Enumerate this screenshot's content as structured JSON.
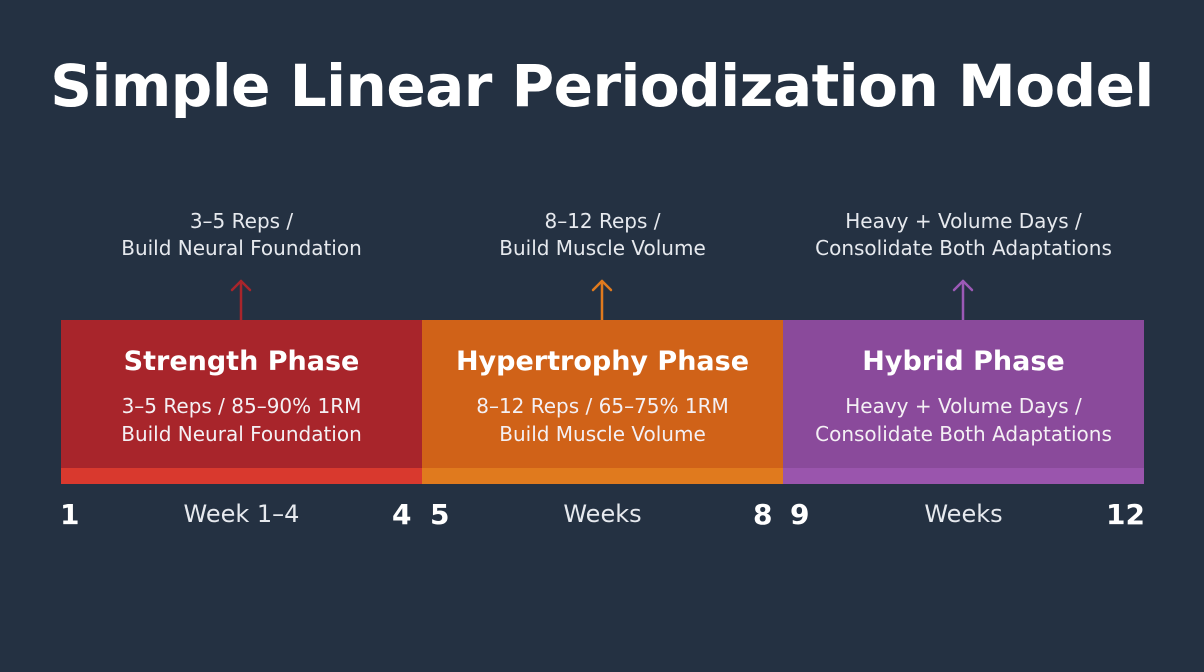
{
  "title": "Simple Linear Periodization Model",
  "colors": {
    "background": "#243142",
    "strength": "#a8252b",
    "strength_strip": "#d9392e",
    "strength_arrow": "#a8252b",
    "hypertrophy": "#d06218",
    "hypertrophy_strip": "#e07a1e",
    "hypertrophy_arrow": "#e07a1e",
    "hybrid": "#8a4a9b",
    "hybrid_strip": "#9a55ad",
    "hybrid_arrow": "#9b59b6"
  },
  "phases": [
    {
      "name": "Strength Phase",
      "desc_line1": "3–5 Reps / 85–90% 1RM",
      "desc_line2": "Build Neural Foundation",
      "note_line1": "3–5 Reps /",
      "note_line2": "Build Neural Foundation",
      "week_start": "1",
      "week_end": "4",
      "week_label": "Week 1–4",
      "arrow_icon": "arrow-up-icon"
    },
    {
      "name": "Hypertrophy Phase",
      "desc_line1": "8–12 Reps / 65–75% 1RM",
      "desc_line2": "Build Muscle Volume",
      "note_line1": "8–12 Reps /",
      "note_line2": "Build Muscle Volume",
      "week_start": "5",
      "week_end": "8",
      "week_label": "Weeks",
      "arrow_icon": "arrow-up-icon"
    },
    {
      "name": "Hybrid Phase",
      "desc_line1": "Heavy + Volume Days /",
      "desc_line2": "Consolidate Both Adaptations",
      "note_line1": "Heavy + Volume Days /",
      "note_line2": "Consolidate Both Adaptations",
      "week_start": "9",
      "week_end": "12",
      "week_label": "Weeks",
      "arrow_icon": "arrow-up-icon"
    }
  ]
}
